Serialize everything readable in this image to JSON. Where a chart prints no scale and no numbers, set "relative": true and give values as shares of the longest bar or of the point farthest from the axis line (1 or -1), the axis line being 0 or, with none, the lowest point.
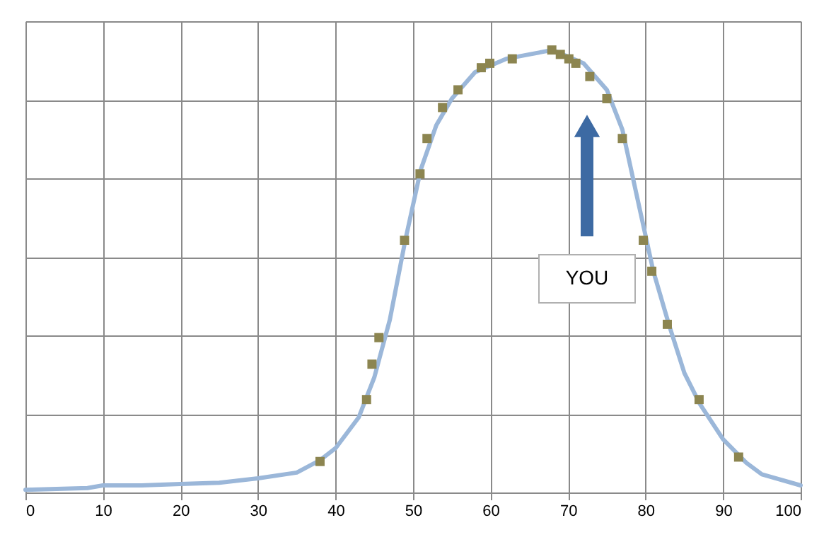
{
  "chart_data": {
    "type": "line",
    "relative": true,
    "xlim": [
      0,
      100
    ],
    "xticks": [
      0,
      10,
      20,
      30,
      40,
      50,
      60,
      70,
      80,
      90,
      100
    ],
    "grid": true,
    "tick_labels": "x",
    "annotations": [
      "YOU"
    ],
    "series": [
      {
        "type": "line",
        "color": "#9bb7d9",
        "marker": "none",
        "line_style": "solid",
        "x": [
          0,
          8,
          10,
          15,
          20,
          25,
          30,
          35,
          38,
          40,
          43,
          45,
          47,
          49,
          51,
          53,
          55,
          58,
          62,
          65,
          68,
          72,
          75,
          77,
          79,
          81,
          83,
          85,
          87,
          90,
          93,
          95,
          100
        ],
        "values": [
          0.006,
          0.01,
          0.016,
          0.016,
          0.019,
          0.022,
          0.032,
          0.045,
          0.073,
          0.1,
          0.17,
          0.26,
          0.39,
          0.57,
          0.73,
          0.83,
          0.89,
          0.95,
          0.98,
          0.99,
          1.0,
          0.97,
          0.91,
          0.82,
          0.66,
          0.5,
          0.38,
          0.27,
          0.2,
          0.12,
          0.067,
          0.041,
          0.016
        ]
      },
      {
        "type": "scatter",
        "color": "#8c8550",
        "marker": "square",
        "x": [
          38,
          44,
          44.7,
          45.6,
          48.9,
          50.9,
          51.8,
          53.8,
          55.8,
          58.8,
          59.9,
          62.8,
          67.9,
          69,
          70.1,
          71,
          72.8,
          75,
          77,
          79.7,
          80.8,
          82.8,
          86.9,
          92
        ],
        "values": [
          0.07,
          0.21,
          0.29,
          0.35,
          0.57,
          0.72,
          0.8,
          0.87,
          0.91,
          0.96,
          0.97,
          0.98,
          1.0,
          0.99,
          0.98,
          0.97,
          0.94,
          0.89,
          0.8,
          0.57,
          0.5,
          0.38,
          0.21,
          0.08
        ]
      }
    ]
  }
}
